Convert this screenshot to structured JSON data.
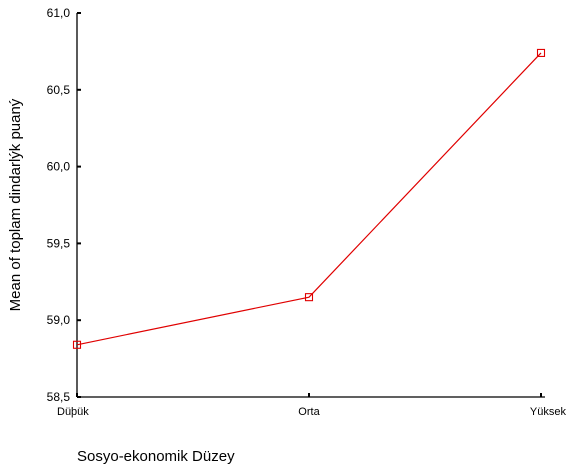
{
  "chart_data": {
    "type": "line",
    "title": "",
    "xlabel": "Sosyo-ekonomik Düzey",
    "ylabel": "Mean of toplam dindarlýk puaný",
    "categories": [
      "Düþük",
      "Orta",
      "Yüksek"
    ],
    "series": [
      {
        "values": [
          58.84,
          59.15,
          60.74
        ],
        "color": "#e00000",
        "marker": "square"
      }
    ],
    "ylim": [
      58.5,
      61.0
    ],
    "yticks": [
      "58,5",
      "59,0",
      "59,5",
      "60,0",
      "60,5",
      "61,0"
    ],
    "ytick_values": [
      58.5,
      59.0,
      59.5,
      60.0,
      60.5,
      61.0
    ],
    "grid": false,
    "legend": "none"
  }
}
